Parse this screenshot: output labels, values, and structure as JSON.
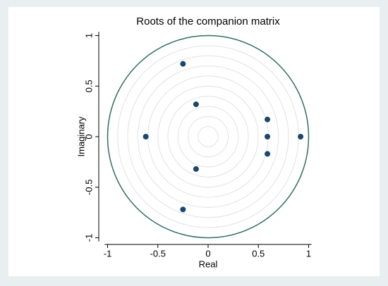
{
  "chart_data": {
    "type": "scatter",
    "title": "Roots of the companion matrix",
    "x_label": "Real",
    "y_label": "Imaginary",
    "x": [
      -0.25,
      -0.12,
      0.59,
      0.59,
      0.59,
      0.92,
      -0.62,
      -0.12,
      -0.25
    ],
    "y": [
      0.72,
      0.32,
      0.17,
      0,
      -0.17,
      0,
      0,
      -0.32,
      -0.72
    ],
    "color": "#1a476f",
    "xlim": [
      -1.05,
      1.05
    ],
    "xticks": [
      -1,
      -0.5,
      0,
      0.5,
      1
    ],
    "ylim": [
      -1.05,
      1.05
    ],
    "yticks": [
      -1,
      -0.5,
      0,
      0.5,
      1
    ],
    "unit_circle_radius": 1,
    "unit_circle_color": "#2f6f62",
    "grid_circle_radii": [
      0.1,
      0.2,
      0.3,
      0.4,
      0.5,
      0.6,
      0.7,
      0.8,
      0.9
    ],
    "grid_circle_color": "#e2e2e2"
  }
}
